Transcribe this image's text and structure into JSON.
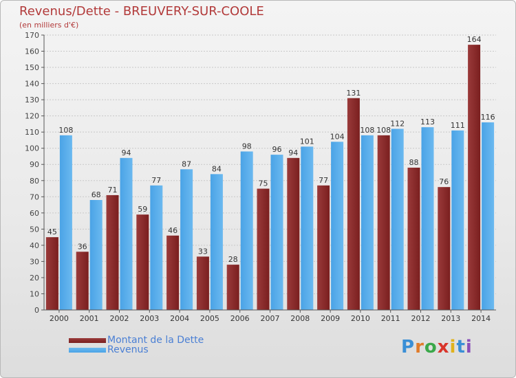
{
  "title": "Revenus/Dette - BREUVERY-SUR-COOLE",
  "subtitle": "(en milliers d'€)",
  "logo": {
    "text": "Proxiti",
    "letter_colors": [
      "#3a8fd6",
      "#e07b2a",
      "#3aa84a",
      "#d9352b",
      "#e0b21d",
      "#3a8fd6",
      "#8a4fb8"
    ]
  },
  "colors": {
    "debt": "#7a1f1f",
    "debt_light": "#9a3a3a",
    "revenue": "#4aa3e6",
    "revenue_light": "#6bb9f0",
    "axis": "#555555",
    "grid": "#c8c8c8"
  },
  "chart_data": {
    "type": "bar",
    "title": "Revenus/Dette - BREUVERY-SUR-COOLE",
    "subtitle": "(en milliers d'€)",
    "categories": [
      "2000",
      "2001",
      "2002",
      "2003",
      "2004",
      "2005",
      "2006",
      "2007",
      "2008",
      "2009",
      "2010",
      "2011",
      "2012",
      "2013",
      "2014"
    ],
    "series": [
      {
        "name": "Montant de la Dette",
        "values": [
          45,
          36,
          71,
          59,
          46,
          33,
          28,
          75,
          94,
          77,
          131,
          108,
          88,
          76,
          164
        ]
      },
      {
        "name": "Revenus",
        "values": [
          108,
          68,
          94,
          77,
          87,
          84,
          98,
          96,
          101,
          104,
          108,
          112,
          113,
          111,
          116
        ]
      }
    ],
    "ylim": [
      0,
      170
    ],
    "yticks": [
      0,
      10,
      20,
      30,
      40,
      50,
      60,
      70,
      80,
      90,
      100,
      110,
      120,
      130,
      140,
      150,
      160,
      170
    ],
    "grid": true,
    "legend": "bottom-left"
  }
}
